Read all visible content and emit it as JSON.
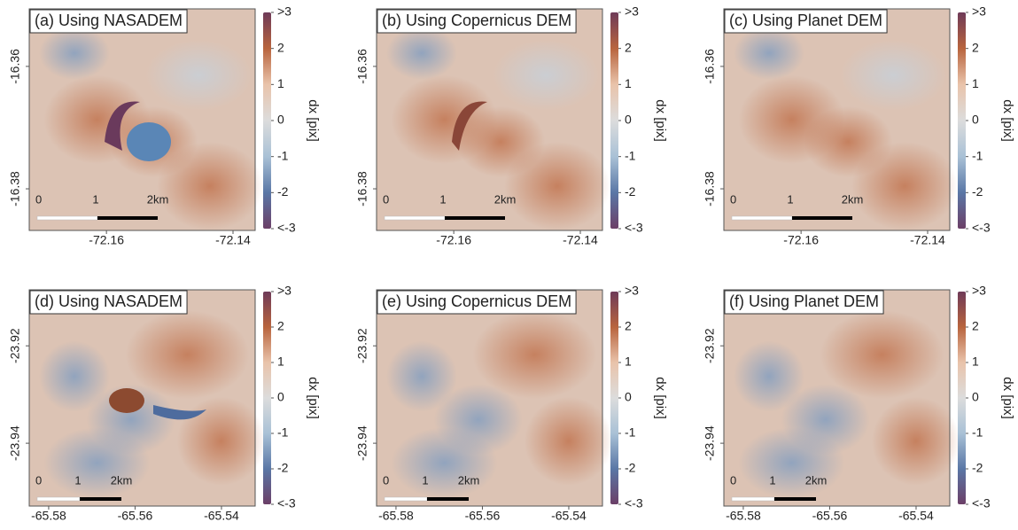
{
  "panels": [
    {
      "title": "(a) Using NASADEM",
      "xlim": [
        -72.1722,
        -72.1365
      ],
      "ylim": [
        -16.3868,
        -16.3506
      ],
      "xticks": [
        -72.16,
        -72.14
      ],
      "yticks": [
        -16.36,
        -16.38
      ],
      "colorbar": {
        "label": "dx [pix]",
        "clim": [
          -3,
          3
        ],
        "ticks": [
          {
            "value": 3,
            "label": ">3"
          },
          2,
          1,
          0,
          -1,
          -2,
          {
            "value": -3,
            "label": "<-3"
          }
        ]
      },
      "scalebar": [
        "0",
        "1",
        "2km"
      ]
    },
    {
      "title": "(b) Using Copernicus DEM",
      "xlim": [
        -72.1722,
        -72.1365
      ],
      "ylim": [
        -16.3868,
        -16.3506
      ],
      "xticks": [
        -72.16,
        -72.14
      ],
      "yticks": [
        -16.36,
        -16.38
      ],
      "colorbar": {
        "label": "dx [pix]",
        "clim": [
          -3,
          3
        ],
        "ticks": [
          {
            "value": 3,
            "label": ">3"
          },
          2,
          1,
          0,
          -1,
          -2,
          {
            "value": -3,
            "label": "<-3"
          }
        ]
      },
      "scalebar": [
        "0",
        "1",
        "2km"
      ]
    },
    {
      "title": "(c) Using Planet DEM",
      "xlim": [
        -72.1722,
        -72.1365
      ],
      "ylim": [
        -16.3868,
        -16.3506
      ],
      "xticks": [
        -72.16,
        -72.14
      ],
      "yticks": [
        -16.36,
        -16.38
      ],
      "colorbar": {
        "label": "dx [pix]",
        "clim": [
          -3,
          3
        ],
        "ticks": [
          {
            "value": 3,
            "label": ">3"
          },
          2,
          1,
          0,
          -1,
          -2,
          {
            "value": -3,
            "label": "<-3"
          }
        ]
      },
      "scalebar": [
        "0",
        "1",
        "2km"
      ]
    },
    {
      "title": "(d) Using NASADEM",
      "xlim": [
        -65.5845,
        -65.5322
      ],
      "ylim": [
        -23.9529,
        -23.9085
      ],
      "xticks": [
        -65.58,
        -65.56,
        -65.54
      ],
      "yticks": [
        -23.92,
        -23.94
      ],
      "colorbar": {
        "label": "dx [pix]",
        "clim": [
          -3,
          3
        ],
        "ticks": [
          {
            "value": 3,
            "label": ">3"
          },
          2,
          1,
          0,
          -1,
          -2,
          {
            "value": -3,
            "label": "<-3"
          }
        ]
      },
      "scalebar": [
        "0",
        "1",
        "2km"
      ]
    },
    {
      "title": "(e) Using Copernicus DEM",
      "xlim": [
        -65.5845,
        -65.5322
      ],
      "ylim": [
        -23.9529,
        -23.9085
      ],
      "xticks": [
        -65.58,
        -65.56,
        -65.54
      ],
      "yticks": [
        -23.92,
        -23.94
      ],
      "colorbar": {
        "label": "dx [pix]",
        "clim": [
          -3,
          3
        ],
        "ticks": [
          {
            "value": 3,
            "label": ">3"
          },
          2,
          1,
          0,
          -1,
          -2,
          {
            "value": -3,
            "label": "<-3"
          }
        ]
      },
      "scalebar": [
        "0",
        "1",
        "2km"
      ]
    },
    {
      "title": "(f) Using Planet DEM",
      "xlim": [
        -65.5845,
        -65.5322
      ],
      "ylim": [
        -23.9529,
        -23.9085
      ],
      "xticks": [
        -65.58,
        -65.56,
        -65.54
      ],
      "yticks": [
        -23.92,
        -23.94
      ],
      "colorbar": {
        "label": "dx [pix]",
        "clim": [
          -3,
          3
        ],
        "ticks": [
          {
            "value": 3,
            "label": ">3"
          },
          2,
          1,
          0,
          -1,
          -2,
          {
            "value": -3,
            "label": "<-3"
          }
        ]
      },
      "scalebar": [
        "0",
        "1",
        "2km"
      ]
    }
  ],
  "colormap": [
    "#6b3f67",
    "#5a77a6",
    "#a9c1d6",
    "#dcdcdc",
    "#e9c3aa",
    "#b8643e",
    "#6e3a58"
  ]
}
